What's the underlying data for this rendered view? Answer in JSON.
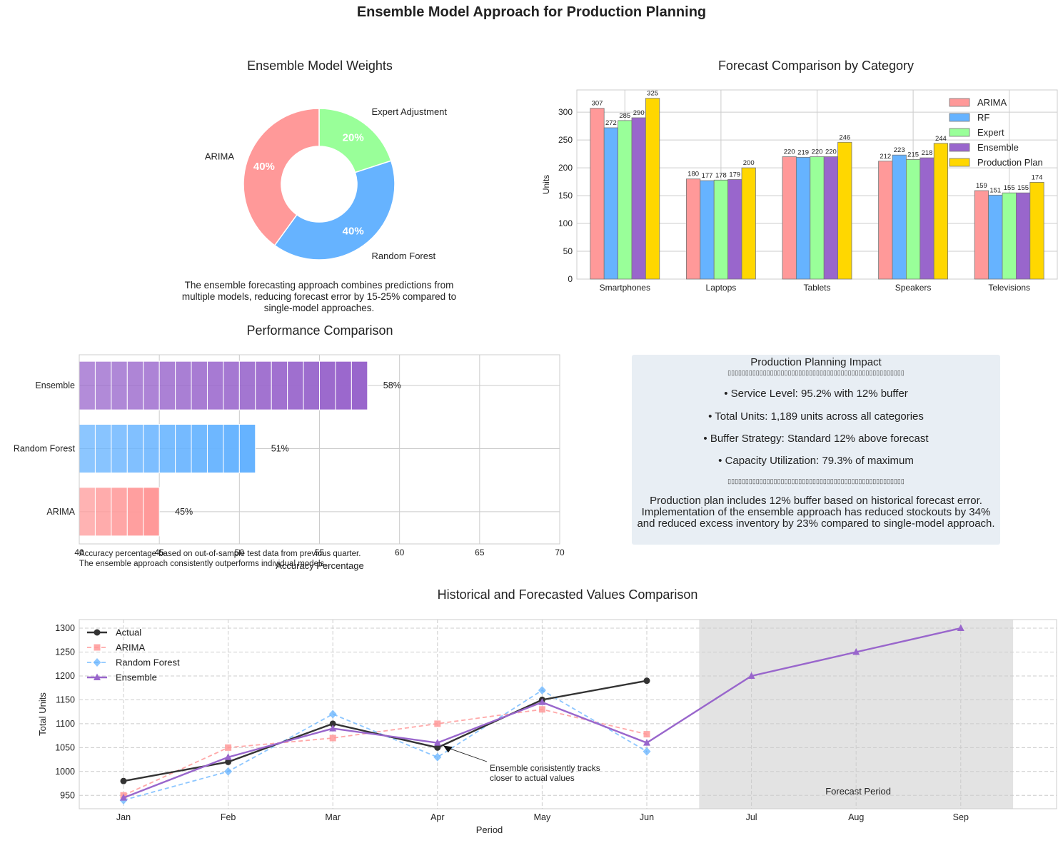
{
  "title": "Ensemble Model Approach for Production Planning",
  "colors": {
    "arima": "#ff9999",
    "rf": "#66b3ff",
    "expert": "#99ff99",
    "ensemble": "#9966cc",
    "production_plan": "#ffd700",
    "actual": "#333333"
  },
  "pie_note": "The ensemble forecasting approach combines predictions from multiple models, reducing forecast error by 15-25% compared to single-model approaches.",
  "perf_note": [
    "Accuracy percentage based on out-of-sample test data from previous quarter.",
    "The ensemble approach consistently outperforms individual models."
  ],
  "impact": {
    "title": "Production Planning Impact",
    "separator": "▯▯▯▯▯▯▯▯▯▯▯▯▯▯▯▯▯▯▯▯▯▯▯▯▯▯▯▯▯▯▯▯▯▯▯▯▯▯▯▯▯▯▯▯▯▯▯▯▯▯",
    "bullets": [
      "• Service Level: 95.2% with 12% buffer",
      "• Total Units: 1,189 units across all categories",
      "• Buffer Strategy: Standard 12% above forecast",
      "• Capacity Utilization: 79.3% of maximum"
    ],
    "footer": [
      "Production plan includes 12% buffer based on historical forecast error.",
      "Implementation of the ensemble approach has reduced stockouts by 34%",
      "and reduced excess inventory by 23% compared to single-model approach."
    ]
  },
  "chart_data": [
    {
      "id": "pie",
      "type": "pie",
      "title": "Ensemble Model Weights",
      "labels": [
        "Expert Adjustment",
        "Random Forest",
        "ARIMA"
      ],
      "values": [
        20,
        40,
        40
      ],
      "value_labels": [
        "20%",
        "40%",
        "40%"
      ],
      "donut": true
    },
    {
      "id": "bars",
      "type": "bar",
      "title": "Forecast Comparison by Category",
      "xlabel": "",
      "ylabel": "Units",
      "categories": [
        "Smartphones",
        "Laptops",
        "Tablets",
        "Speakers",
        "Televisions"
      ],
      "series": [
        {
          "name": "ARIMA",
          "values": [
            307,
            180,
            220,
            212,
            159
          ]
        },
        {
          "name": "RF",
          "values": [
            272,
            177,
            219,
            223,
            151
          ]
        },
        {
          "name": "Expert",
          "values": [
            285,
            178,
            220,
            215,
            155
          ]
        },
        {
          "name": "Ensemble",
          "values": [
            290,
            179,
            220,
            218,
            155
          ]
        },
        {
          "name": "Production Plan",
          "values": [
            325,
            200,
            246,
            244,
            174
          ]
        }
      ],
      "ylim": [
        0,
        340
      ],
      "yticks": [
        0,
        50,
        100,
        150,
        200,
        250,
        300
      ],
      "grid": true,
      "legend": "top-right"
    },
    {
      "id": "perf",
      "type": "bar",
      "orientation": "horizontal",
      "title": "Performance Comparison",
      "xlabel": "Accuracy Percentage",
      "ylabel": "",
      "categories": [
        "Ensemble",
        "Random Forest",
        "ARIMA"
      ],
      "values": [
        58,
        51,
        45
      ],
      "value_labels": [
        "58%",
        "51%",
        "45%"
      ],
      "xlim": [
        40,
        70
      ],
      "xticks": [
        40,
        45,
        50,
        55,
        60,
        65,
        70
      ],
      "grid": true
    },
    {
      "id": "line",
      "type": "line",
      "title": "Historical and Forecasted Values Comparison",
      "xlabel": "Period",
      "ylabel": "Total Units",
      "x": [
        "Jan",
        "Feb",
        "Mar",
        "Apr",
        "May",
        "Jun",
        "Jul",
        "Aug",
        "Sep"
      ],
      "series": [
        {
          "name": "Actual",
          "values": [
            980,
            1020,
            1100,
            1050,
            1150,
            1190,
            null,
            null,
            null
          ]
        },
        {
          "name": "ARIMA",
          "values": [
            950,
            1050,
            1070,
            1100,
            1130,
            1078,
            null,
            null,
            null
          ]
        },
        {
          "name": "Random Forest",
          "values": [
            940,
            1000,
            1120,
            1030,
            1170,
            1042,
            null,
            null,
            null
          ]
        },
        {
          "name": "Ensemble",
          "values": [
            945,
            1030,
            1090,
            1060,
            1145,
            1060,
            1200,
            1250,
            1300
          ]
        }
      ],
      "ylim": [
        922,
        1318
      ],
      "yticks": [
        950,
        1000,
        1050,
        1100,
        1150,
        1200,
        1250,
        1300
      ],
      "shaded_region": {
        "from": "Jun",
        "to": "Sep",
        "label": "Forecast Period"
      },
      "annotation": "Ensemble consistently tracks closer to actual values",
      "annotation_lines": [
        "Ensemble consistently tracks",
        "closer to actual values"
      ],
      "grid": true,
      "legend": "top-left"
    }
  ]
}
